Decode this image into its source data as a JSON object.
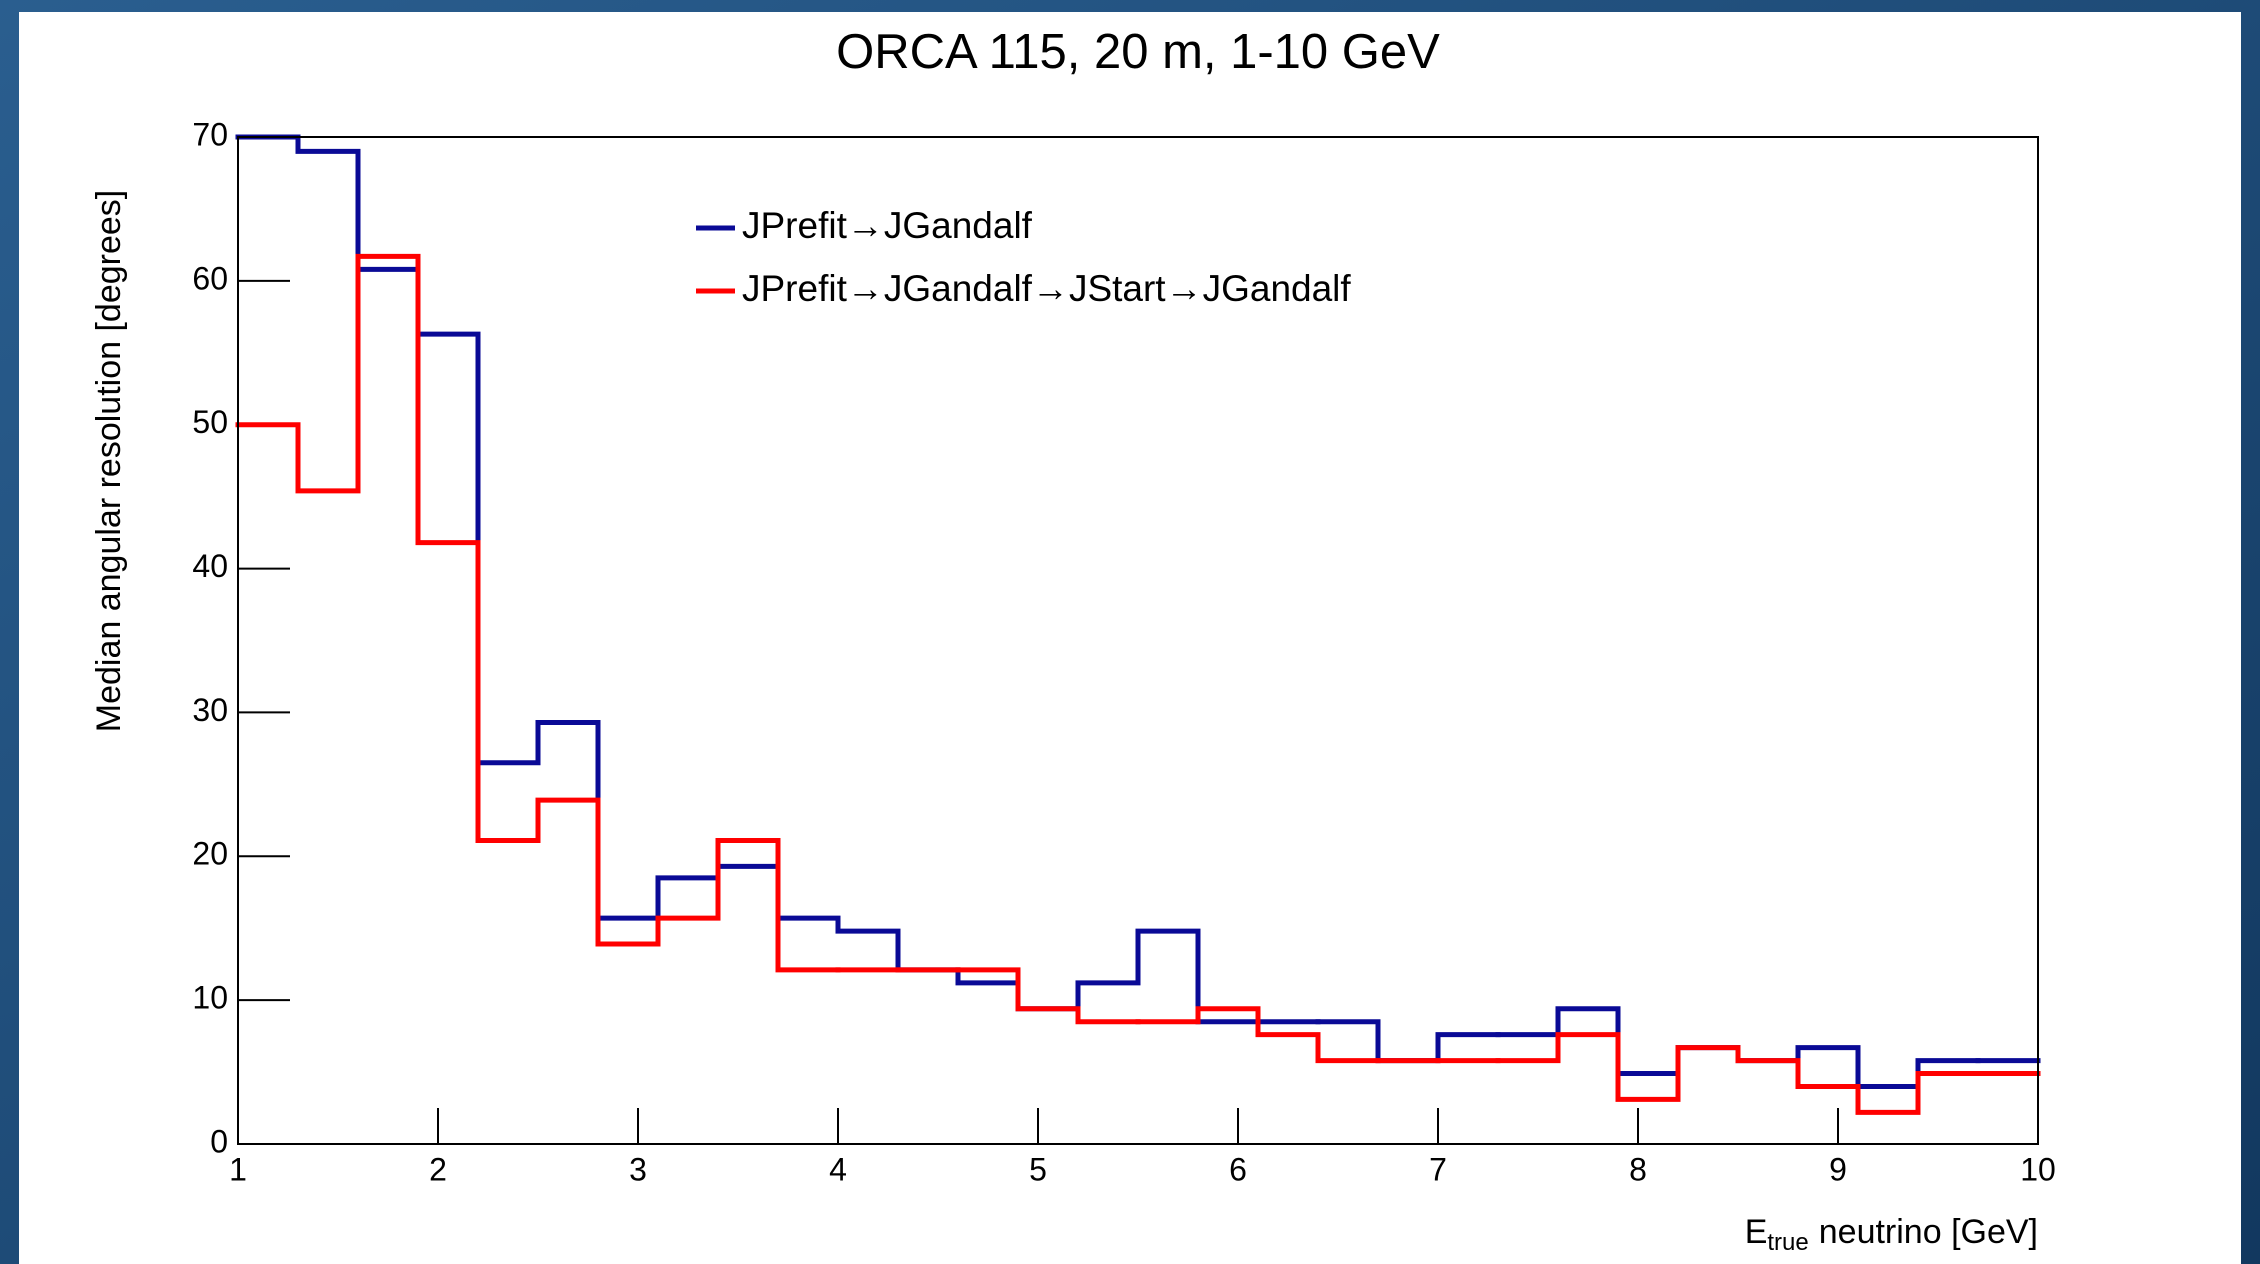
{
  "chart_data": {
    "type": "histogram_step",
    "title": "ORCA 115, 20 m, 1-10 GeV",
    "ylabel": "Median angular resolution [degrees]",
    "xlabel": "E",
    "xlabel_subscript": "true",
    "xlabel_suffix": "neutrino [GeV]",
    "bins": [
      1,
      1.3,
      1.6,
      1.9,
      2.2,
      2.5,
      2.8,
      3.1,
      3.4,
      3.7,
      4,
      4.3,
      4.6,
      4.9,
      5.2,
      5.5,
      5.8,
      6.1,
      6.4,
      6.7,
      7,
      7.3,
      7.6,
      7.9,
      8.2,
      8.5,
      8.8,
      9.1,
      9.4,
      9.7,
      10
    ],
    "series": [
      {
        "name": "JPrefit→JGandalf",
        "color": "#0a0a96",
        "values": [
          70,
          69,
          60.8,
          56.3,
          26.5,
          29.3,
          15.7,
          18.5,
          19.3,
          15.7,
          14.8,
          12.1,
          11.2,
          9.4,
          11.2,
          14.8,
          8.5,
          8.5,
          8.5,
          5.8,
          7.6,
          7.6,
          9.4,
          4.9,
          6.7,
          5.8,
          6.7,
          4.0,
          5.8,
          5.8
        ]
      },
      {
        "name": "JPrefit→JGandalf→JStart→JGandalf",
        "color": "#ff0000",
        "values": [
          50,
          45.4,
          61.7,
          41.8,
          21.1,
          23.9,
          13.9,
          15.7,
          21.1,
          12.1,
          12.1,
          12.1,
          12.1,
          9.4,
          8.5,
          8.5,
          9.4,
          7.6,
          5.8,
          5.8,
          5.8,
          5.8,
          7.6,
          3.1,
          6.7,
          5.8,
          4.0,
          2.2,
          4.9,
          4.9
        ]
      }
    ],
    "xlim": [
      1,
      10
    ],
    "xticks": [
      1,
      2,
      3,
      4,
      5,
      6,
      7,
      8,
      9,
      10
    ],
    "ylim": [
      0,
      70
    ],
    "yticks": [
      0,
      10,
      20,
      30,
      40,
      50,
      60,
      70
    ],
    "legend": "top-center"
  }
}
